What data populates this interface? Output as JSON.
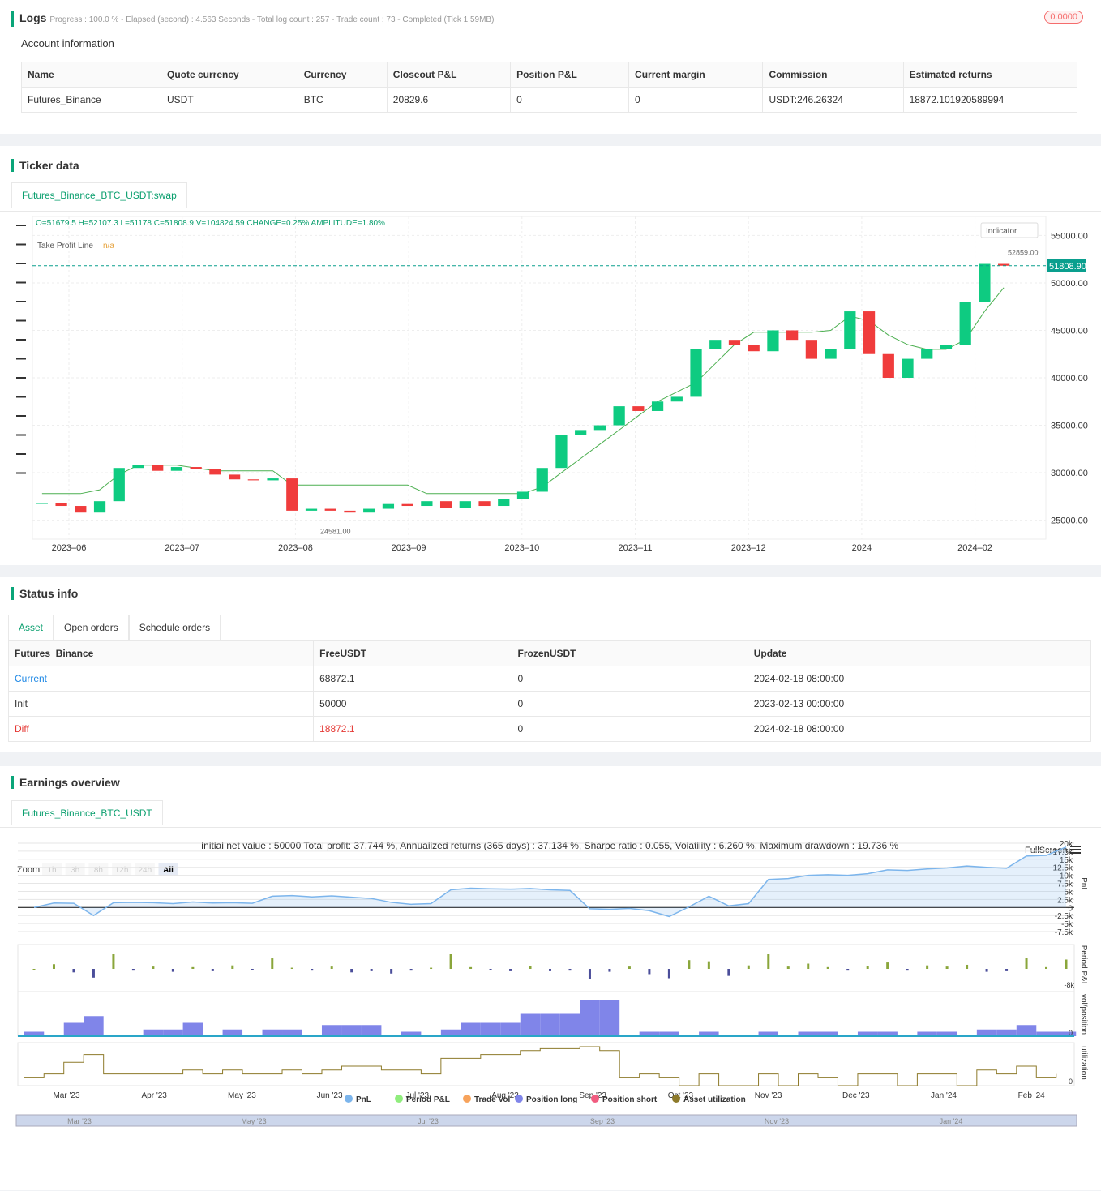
{
  "logs": {
    "title": "Logs",
    "status": "Progress : 100.0 % - Elapsed (second) : 4.563  Seconds - Total log count : 257 - Trade count : 73 - Completed (Tick 1.59MB)",
    "badge": "0.0000",
    "account_title": "Account information",
    "table": {
      "headers": [
        "Name",
        "Quote currency",
        "Currency",
        "Closeout P&L",
        "Position P&L",
        "Current margin",
        "Commission",
        "Estimated returns"
      ],
      "rows": [
        [
          "Futures_Binance",
          "USDT",
          "BTC",
          "20829.6",
          "0",
          "0",
          "USDT:246.26324",
          "18872.101920589994"
        ]
      ]
    }
  },
  "ticker": {
    "title": "Ticker data",
    "tab": "Futures_Binance_BTC_USDT:swap",
    "ohlc": "O=51679.5 H=52107.3 L=51178 C=51808.9 V=104824.59 CHANGE=0.25% AMPLITUDE=1.80%",
    "legend": "Take Profit Line",
    "legend_value": "n/a",
    "indicator": "Indicator",
    "high_label": "52859.00",
    "low_label": "24581.00",
    "chart_data": {
      "type": "candlestick",
      "ylim": [
        23000,
        57000
      ],
      "yticks": [
        {
          "value": 55000,
          "label": "55000.00"
        },
        {
          "value": 50000,
          "label": "50000.00"
        },
        {
          "value": 45000,
          "label": "45000.00"
        },
        {
          "value": 40000,
          "label": "40000.00"
        },
        {
          "value": 35000,
          "label": "35000.00"
        },
        {
          "value": 30000,
          "label": "30000.00"
        },
        {
          "value": 25000,
          "label": "25000.00"
        }
      ],
      "x_labels": [
        "2023–06",
        "2023–07",
        "2023–08",
        "2023–09",
        "2023–10",
        "2023–11",
        "2023–12",
        "2024",
        "2024–02"
      ],
      "last_price": {
        "value": 51808.9,
        "label": "51808.90"
      },
      "close": [
        26800,
        26500,
        25800,
        27000,
        30500,
        30800,
        30200,
        30600,
        30400,
        29800,
        29300,
        29200,
        29400,
        26000,
        26200,
        26000,
        25800,
        26200,
        26700,
        26500,
        27000,
        26300,
        27000,
        26500,
        27200,
        28000,
        30500,
        34000,
        34500,
        35000,
        37000,
        36500,
        37500,
        38000,
        43000,
        44000,
        43500,
        42800,
        45000,
        44000,
        42000,
        43000,
        47000,
        42500,
        40000,
        42000,
        43000,
        43500,
        48000,
        52000,
        51808.9
      ],
      "take_profit": [
        27800,
        27800,
        27800,
        28200,
        29800,
        30800,
        30800,
        30800,
        30500,
        30200,
        30200,
        30200,
        30200,
        28700,
        28700,
        28700,
        28700,
        28700,
        28700,
        28700,
        27800,
        27800,
        27800,
        27800,
        27800,
        27800,
        28500,
        30000,
        31500,
        33000,
        34500,
        36000,
        37500,
        38500,
        39500,
        41500,
        43500,
        44800,
        44800,
        44800,
        44800,
        45000,
        46500,
        46000,
        44500,
        43500,
        43000,
        43000,
        44000,
        47000,
        49500
      ],
      "color_up": "#0ecb81",
      "color_down": "#f03c3c",
      "line_color": "#4caf50"
    }
  },
  "status": {
    "title": "Status info",
    "tabs": [
      "Asset",
      "Open orders",
      "Schedule orders"
    ],
    "table": {
      "headers": [
        "Futures_Binance",
        "FreeUSDT",
        "FrozenUSDT",
        "Update"
      ],
      "rows": [
        [
          "Current",
          "68872.1",
          "0",
          "2024-02-18 08:00:00"
        ],
        [
          "Init",
          "50000",
          "0",
          "2023-02-13 00:00:00"
        ],
        [
          "Diff",
          "18872.1",
          "0",
          "2024-02-18 08:00:00"
        ]
      ]
    }
  },
  "earnings": {
    "title": "Earnings overview",
    "tab": "Futures_Binance_BTC_USDT",
    "summary": "Initial net value : 50000 Total profit: 37.744 %, Annualized returns (365 days) : 37.134 %, Sharpe ratio : 0.055, Volatility : 6.260 %, Maximum drawdown : 19.736 %",
    "fullscreen": "FullScreen",
    "zoom": "Zoom",
    "zoom_buttons": [
      "1h",
      "3h",
      "8h",
      "12h",
      "24h",
      "All"
    ],
    "axis_titles": [
      "PnL",
      "Period P&L",
      "vol/position",
      "utilization"
    ],
    "period_min": "-8k",
    "zero_labels": [
      "0",
      "0"
    ],
    "chart_data": {
      "type": "line",
      "ylim": [
        -8500,
        21000
      ],
      "yticks": [
        {
          "value": 20000,
          "label": "20k"
        },
        {
          "value": 17500,
          "label": "17.5k"
        },
        {
          "value": 15000,
          "label": "15k"
        },
        {
          "value": 12500,
          "label": "12.5k"
        },
        {
          "value": 10000,
          "label": "10k"
        },
        {
          "value": 7500,
          "label": "7.5k"
        },
        {
          "value": 5000,
          "label": "5k"
        },
        {
          "value": 2500,
          "label": "2.5k"
        },
        0,
        {
          "value": -2500,
          "label": "-2.5k"
        },
        {
          "value": -5000,
          "label": "-5k"
        },
        {
          "value": -7500,
          "label": "-7.5k"
        }
      ],
      "x_labels": [
        "Mar '23",
        "Apr '23",
        "May '23",
        "Jun '23",
        "Jul '23",
        "Aug '23",
        "Sep '23",
        "Oct '23",
        "Nov '23",
        "Dec '23",
        "Jan '24",
        "Feb '24"
      ],
      "nav_labels": [
        "Mar '23",
        "May '23",
        "Jul '23",
        "Sep '23",
        "Nov '23",
        "Jan '24"
      ],
      "series": [
        {
          "name": "PnL",
          "color": "#7cb5ec",
          "values": [
            0,
            1400,
            1300,
            -2500,
            1500,
            1600,
            1500,
            1200,
            1700,
            1400,
            1500,
            1300,
            3500,
            3700,
            3300,
            3600,
            3200,
            2800,
            1600,
            1000,
            1200,
            5500,
            6000,
            5800,
            5700,
            5900,
            5500,
            5300,
            -400,
            -600,
            -300,
            -1000,
            -2800,
            200,
            3500,
            500,
            1200,
            8700,
            9000,
            10000,
            10200,
            10000,
            10500,
            11700,
            11500,
            12000,
            12300,
            12900,
            12500,
            12200,
            16000,
            16200,
            18800
          ]
        },
        {
          "name": "Period P&L",
          "color": "#90ed7d",
          "values": [
            0,
            800,
            -600,
            -1500,
            2500,
            -300,
            400,
            -500,
            300,
            -400,
            600,
            -200,
            1800,
            200,
            -300,
            400,
            -600,
            -400,
            -800,
            -300,
            200,
            2500,
            300,
            -200,
            -400,
            500,
            -400,
            -300,
            -1800,
            -500,
            400,
            -900,
            -1600,
            1500,
            1300,
            -1200,
            600,
            2500,
            400,
            900,
            300,
            -300,
            500,
            1100,
            -300,
            600,
            400,
            700,
            -500,
            -400,
            1900,
            300,
            1600
          ]
        },
        {
          "name": "Trade Vol",
          "color": "#f7a35c",
          "values": []
        },
        {
          "name": "Position long",
          "color": "#8085e9",
          "values": [
            0.2,
            0,
            0.6,
            0.9,
            0,
            0,
            0.3,
            0.3,
            0.6,
            0,
            0.3,
            0,
            0.3,
            0.3,
            0,
            0.5,
            0.5,
            0.5,
            0,
            0.2,
            0,
            0.3,
            0.6,
            0.6,
            0.6,
            1.0,
            1.0,
            1.0,
            1.6,
            1.6,
            0,
            0.2,
            0.2,
            0,
            0.2,
            0,
            0,
            0.2,
            0,
            0.2,
            0.2,
            0,
            0.2,
            0.2,
            0,
            0.2,
            0.2,
            0,
            0.3,
            0.3,
            0.5,
            0.2,
            0.2
          ]
        },
        {
          "name": "Position short",
          "color": "#f15c80",
          "values": []
        },
        {
          "name": "Asset utilization",
          "color": "#8d7a2a",
          "values": [
            0.2,
            0.3,
            0.6,
            0.8,
            0.3,
            0.3,
            0.3,
            0.3,
            0.4,
            0.3,
            0.4,
            0.3,
            0.3,
            0.4,
            0.3,
            0.4,
            0.5,
            0.5,
            0.4,
            0.4,
            0.3,
            0.7,
            0.7,
            0.8,
            0.8,
            0.9,
            0.95,
            0.95,
            1.0,
            0.9,
            0.2,
            0.3,
            0.2,
            0,
            0.3,
            0,
            0,
            0.3,
            0,
            0.3,
            0.2,
            0,
            0.3,
            0.3,
            0,
            0.3,
            0.3,
            0,
            0.4,
            0.3,
            0.5,
            0.2,
            0.3
          ]
        }
      ]
    }
  }
}
